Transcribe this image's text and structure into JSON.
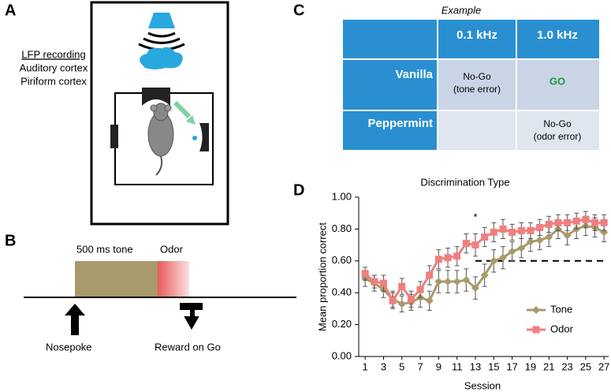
{
  "panel_a": {
    "label": "A",
    "notes": [
      "LFP recording",
      "Auditory cortex",
      "Piriform cortex"
    ]
  },
  "panel_b": {
    "label": "B",
    "tone": "500 ms tone",
    "odor": "Odor",
    "nosepoke": "Nosepoke",
    "reward": "Reward on Go"
  },
  "panel_c": {
    "label": "C",
    "caption": "Example",
    "table": {
      "header": [
        "0.1 kHz",
        "1.0 kHz"
      ],
      "rows": [
        {
          "label": "Vanilla",
          "cells": [
            [
              "No-Go",
              "(tone error)"
            ],
            [
              "GO"
            ]
          ]
        },
        {
          "label": "Peppermint",
          "cells": [
            [],
            [
              "No-Go",
              "(odor error)"
            ]
          ]
        }
      ]
    }
  },
  "panel_d": {
    "label": "D"
  },
  "chart_data": {
    "type": "line",
    "title": "Discrimination Type",
    "x_label": "Session",
    "y_label": "Mean proportion correct",
    "x": [
      1,
      2,
      3,
      4,
      5,
      6,
      7,
      8,
      9,
      10,
      11,
      12,
      13,
      14,
      15,
      16,
      17,
      18,
      19,
      20,
      21,
      22,
      23,
      24,
      25,
      26,
      27
    ],
    "series": [
      {
        "name": "Tone",
        "color": "#a89a6a",
        "marker": "diamond",
        "values": [
          0.49,
          0.46,
          0.42,
          0.36,
          0.33,
          0.34,
          0.37,
          0.35,
          0.47,
          0.47,
          0.47,
          0.48,
          0.43,
          0.51,
          0.6,
          0.62,
          0.66,
          0.68,
          0.72,
          0.73,
          0.75,
          0.8,
          0.76,
          0.8,
          0.82,
          0.81,
          0.78
        ],
        "errors": [
          0.05,
          0.05,
          0.05,
          0.05,
          0.05,
          0.05,
          0.06,
          0.06,
          0.07,
          0.07,
          0.07,
          0.07,
          0.07,
          0.07,
          0.07,
          0.07,
          0.06,
          0.06,
          0.06,
          0.06,
          0.06,
          0.06,
          0.06,
          0.06,
          0.06,
          0.06,
          0.06
        ]
      },
      {
        "name": "Odor",
        "color": "#f07f7f",
        "marker": "square",
        "values": [
          0.52,
          0.47,
          0.46,
          0.35,
          0.44,
          0.36,
          0.42,
          0.51,
          0.61,
          0.62,
          0.63,
          0.71,
          0.7,
          0.75,
          0.78,
          0.8,
          0.78,
          0.79,
          0.79,
          0.81,
          0.83,
          0.84,
          0.84,
          0.85,
          0.86,
          0.84,
          0.84
        ],
        "errors": [
          0.04,
          0.04,
          0.05,
          0.05,
          0.05,
          0.05,
          0.05,
          0.06,
          0.06,
          0.06,
          0.06,
          0.06,
          0.07,
          0.06,
          0.06,
          0.06,
          0.05,
          0.05,
          0.05,
          0.05,
          0.05,
          0.05,
          0.05,
          0.05,
          0.05,
          0.05,
          0.05
        ]
      }
    ],
    "reference_line": {
      "y": 0.6,
      "x_range": [
        13,
        27
      ]
    },
    "annotations": [
      {
        "text": "*",
        "x": 13,
        "y": 0.87
      }
    ],
    "xlim": [
      0.3,
      27.5
    ],
    "xticks": [
      1,
      3,
      5,
      7,
      9,
      11,
      13,
      15,
      17,
      19,
      21,
      23,
      25,
      27
    ],
    "ylim": [
      0,
      1
    ],
    "yticks": [
      {
        "value": 0,
        "label": "0.00"
      },
      {
        "value": 0.2,
        "label": "0.20"
      },
      {
        "value": 0.4,
        "label": "0.40"
      },
      {
        "value": 0.6,
        "label": "0.60"
      },
      {
        "value": 0.8,
        "label": "0.80"
      },
      {
        "value": 1,
        "label": "1.00"
      }
    ],
    "legend": "lower right"
  }
}
